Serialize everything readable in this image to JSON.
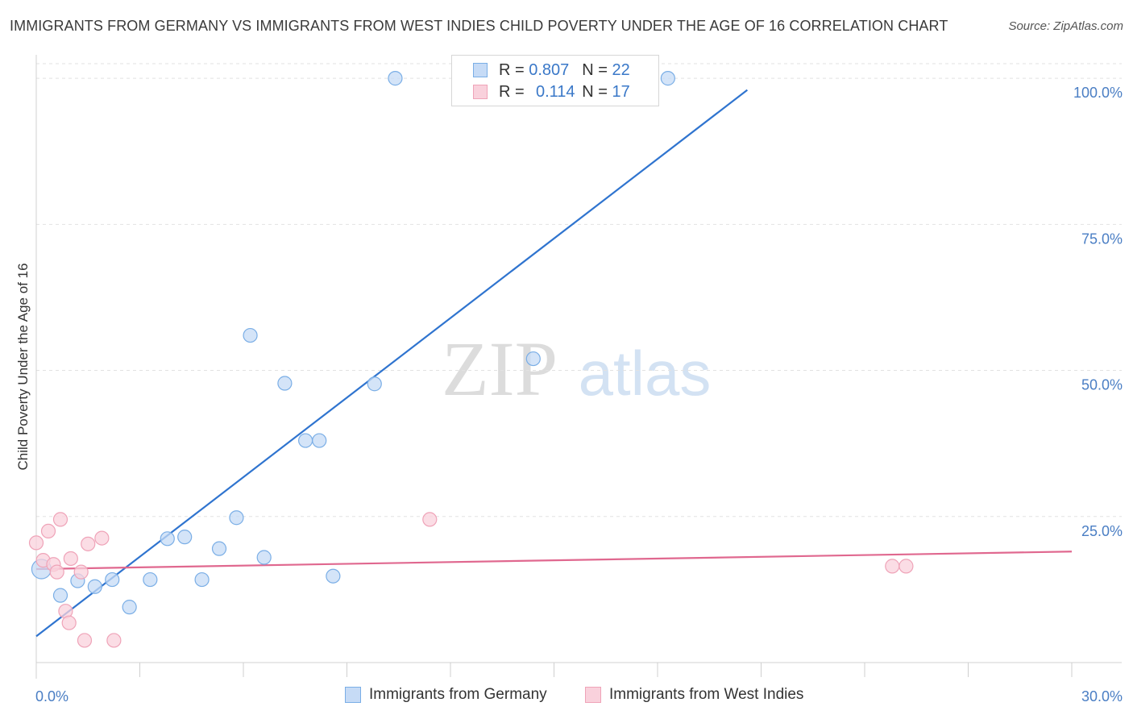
{
  "chart_data": {
    "type": "scatter",
    "title": "IMMIGRANTS FROM GERMANY VS IMMIGRANTS FROM WEST INDIES CHILD POVERTY UNDER THE AGE OF 16 CORRELATION CHART",
    "source": "Source: ZipAtlas.com",
    "xlabel": "",
    "ylabel": "Child Poverty Under the Age of 16",
    "xlim": [
      0,
      30
    ],
    "ylim": [
      0,
      102.5
    ],
    "x_tick_labels": [
      "0.0%",
      "30.0%"
    ],
    "y_ticks": [
      {
        "value": 25,
        "label": "25.0%"
      },
      {
        "value": 50,
        "label": "50.0%"
      },
      {
        "value": 75,
        "label": "75.0%"
      },
      {
        "value": 100,
        "label": "100.0%"
      }
    ],
    "grid": true,
    "watermark": "ZIPatlas",
    "series": [
      {
        "name": "Immigrants from Germany",
        "color": "#7aaee6",
        "fill": "#c6dbf6",
        "line_color": "#2f74cf",
        "R": "0.807",
        "N": "22",
        "trend": [
          [
            0,
            4.5
          ],
          [
            20.6,
            98.0
          ]
        ],
        "points": [
          [
            0.15,
            16.0
          ],
          [
            0.7,
            11.5
          ],
          [
            1.2,
            14.0
          ],
          [
            1.7,
            13.0
          ],
          [
            2.2,
            14.2
          ],
          [
            2.7,
            9.5
          ],
          [
            3.3,
            14.2
          ],
          [
            3.8,
            21.2
          ],
          [
            4.3,
            21.5
          ],
          [
            4.8,
            14.2
          ],
          [
            5.3,
            19.5
          ],
          [
            5.8,
            24.8
          ],
          [
            6.2,
            56.0
          ],
          [
            6.6,
            18.0
          ],
          [
            7.2,
            47.8
          ],
          [
            7.8,
            38.0
          ],
          [
            8.2,
            38.0
          ],
          [
            8.6,
            14.8
          ],
          [
            9.8,
            47.7
          ],
          [
            10.4,
            100.0
          ],
          [
            14.4,
            52.0
          ],
          [
            18.3,
            100.0
          ]
        ]
      },
      {
        "name": "Immigrants from West Indies",
        "color": "#efa3b8",
        "fill": "#f9d1dc",
        "line_color": "#e0688f",
        "R": "0.114",
        "N": "17",
        "trend": [
          [
            0,
            16.0
          ],
          [
            30,
            19.0
          ]
        ],
        "points": [
          [
            0.0,
            20.5
          ],
          [
            0.2,
            17.5
          ],
          [
            0.35,
            22.5
          ],
          [
            0.5,
            16.8
          ],
          [
            0.6,
            15.5
          ],
          [
            0.7,
            24.5
          ],
          [
            0.85,
            8.8
          ],
          [
            0.95,
            6.8
          ],
          [
            1.0,
            17.8
          ],
          [
            1.3,
            15.5
          ],
          [
            1.4,
            3.8
          ],
          [
            1.5,
            20.3
          ],
          [
            1.9,
            21.3
          ],
          [
            2.25,
            3.8
          ],
          [
            11.4,
            24.5
          ],
          [
            24.8,
            16.5
          ],
          [
            25.2,
            16.5
          ]
        ]
      }
    ]
  },
  "legend": {
    "r_label": "R =",
    "n_label": "N ="
  }
}
